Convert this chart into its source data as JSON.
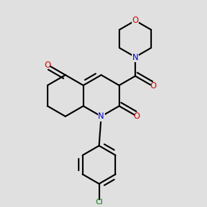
{
  "bg_color": "#e0e0e0",
  "bond_color": "#000000",
  "N_color": "#0000cc",
  "O_color": "#cc0000",
  "Cl_color": "#007700",
  "lw": 1.6,
  "dbo": 0.018,
  "fig_size": [
    3.0,
    3.0
  ],
  "dpi": 100,
  "xlim": [
    0.05,
    0.95
  ],
  "ylim": [
    0.05,
    0.98
  ]
}
